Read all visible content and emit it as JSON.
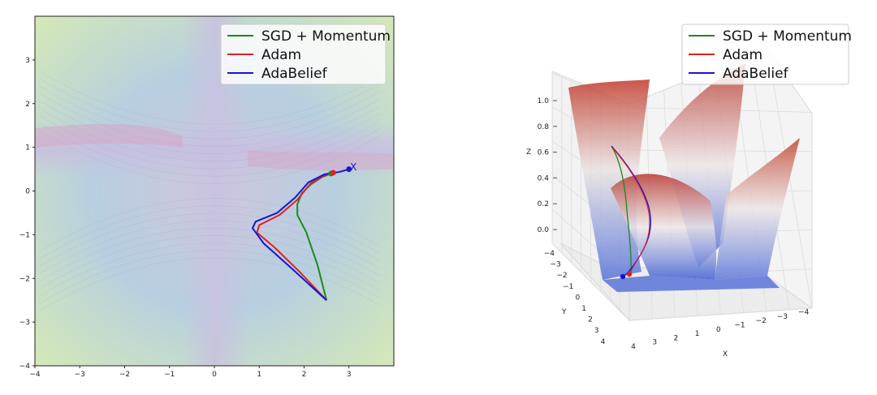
{
  "chart_data": [
    {
      "type": "line",
      "subtype": "contour-trajectory",
      "xlim": [
        -4,
        4
      ],
      "ylim": [
        -4,
        4
      ],
      "x_ticks": [
        "−4",
        "−3",
        "−2",
        "−1",
        "0",
        "1",
        "2",
        "3"
      ],
      "y_ticks": [
        "−4",
        "−3",
        "−2",
        "−1",
        "0",
        "1",
        "2",
        "3"
      ],
      "x_tick_values": [
        -4,
        -3,
        -2,
        -1,
        0,
        1,
        2,
        3
      ],
      "y_tick_values": [
        -4,
        -3,
        -2,
        -1,
        0,
        1,
        2,
        3
      ],
      "legend_position": "top-right",
      "start_marker": {
        "x": 2.5,
        "y": -2.5
      },
      "target_marker": {
        "label": "X",
        "x": 3.1,
        "y": 0.55
      },
      "series": [
        {
          "name": "SGD + Momentum",
          "color": "#1a8a1a",
          "points": [
            [
              2.5,
              -2.5
            ],
            [
              2.3,
              -1.7
            ],
            [
              2.05,
              -0.95
            ],
            [
              1.85,
              -0.55
            ],
            [
              1.85,
              -0.3
            ],
            [
              1.95,
              -0.05
            ],
            [
              2.15,
              0.15
            ],
            [
              2.4,
              0.32
            ],
            [
              2.6,
              0.4
            ]
          ],
          "end_marker": {
            "x": 2.6,
            "y": 0.4
          }
        },
        {
          "name": "Adam",
          "color": "#e02020",
          "points": [
            [
              2.5,
              -2.5
            ],
            [
              1.9,
              -1.85
            ],
            [
              1.35,
              -1.3
            ],
            [
              0.95,
              -0.95
            ],
            [
              1.0,
              -0.78
            ],
            [
              1.45,
              -0.55
            ],
            [
              1.85,
              -0.2
            ],
            [
              2.15,
              0.18
            ],
            [
              2.5,
              0.38
            ],
            [
              2.65,
              0.42
            ]
          ],
          "end_marker": {
            "x": 2.65,
            "y": 0.42
          }
        },
        {
          "name": "AdaBelief",
          "color": "#1515d8",
          "points": [
            [
              2.5,
              -2.5
            ],
            [
              1.7,
              -1.75
            ],
            [
              1.1,
              -1.2
            ],
            [
              0.85,
              -0.85
            ],
            [
              0.92,
              -0.7
            ],
            [
              1.4,
              -0.5
            ],
            [
              1.8,
              -0.15
            ],
            [
              2.1,
              0.2
            ],
            [
              2.45,
              0.38
            ],
            [
              2.8,
              0.44
            ],
            [
              3.0,
              0.5
            ]
          ],
          "end_marker": {
            "x": 3.0,
            "y": 0.5
          }
        }
      ]
    },
    {
      "type": "surface3d",
      "xlabel": "X",
      "ylabel": "Y",
      "zlabel": "Z",
      "x_ticks": [
        "4",
        "3",
        "2",
        "1",
        "0",
        "−1",
        "−2",
        "−3",
        "−4"
      ],
      "y_ticks": [
        "−4",
        "−3",
        "−2",
        "−1",
        "0",
        "1",
        "2",
        "3",
        "4"
      ],
      "z_ticks": [
        "0.0",
        "0.2",
        "0.4",
        "0.6",
        "0.8",
        "1.0"
      ],
      "zlim": [
        0,
        1.0
      ],
      "colormap": [
        "#3b4cc0",
        "#dddddd",
        "#b40426"
      ],
      "legend_position": "top-right",
      "series": [
        {
          "name": "SGD + Momentum",
          "color": "#1a8a1a"
        },
        {
          "name": "Adam",
          "color": "#e02020"
        },
        {
          "name": "AdaBelief",
          "color": "#1515d8"
        }
      ]
    }
  ]
}
